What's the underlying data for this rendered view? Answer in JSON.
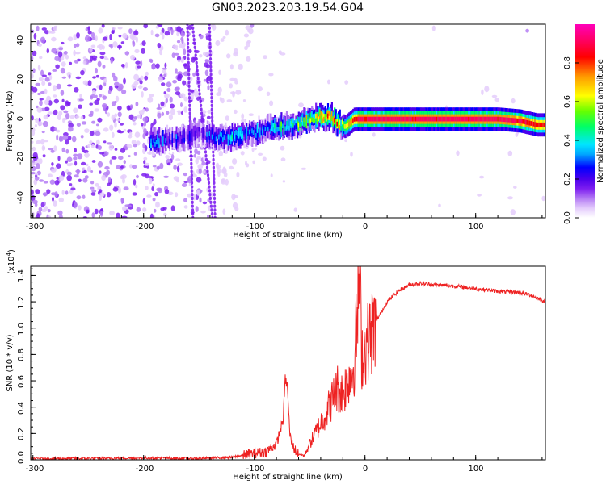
{
  "title": "GN03.2023.203.19.54.G04",
  "top_panel": {
    "xlabel": "Height of straight line (km)",
    "ylabel": "Frequency (Hz)",
    "xticks": [
      "-300",
      "-200",
      "-100",
      "0",
      "100"
    ],
    "yticks": [
      "40",
      "20",
      "0",
      "-20",
      "-40"
    ],
    "colorbar": {
      "label": "Normalized spectral amplitude",
      "ticks": [
        "0.0",
        "0.2",
        "0.4",
        "0.6",
        "0.8"
      ]
    }
  },
  "bottom_panel": {
    "xlabel": "Height of straight line (km)",
    "ylabel": "SNR (10 * v/v)",
    "scale_label": "(x10",
    "scale_exp": "4",
    "scale_close": ")",
    "yticks": [
      "1.4",
      "1.2",
      "1.0",
      "0.8",
      "0.6",
      "0.4",
      "0.2",
      "0.0"
    ],
    "xticks": [
      "-300",
      "-200",
      "-100",
      "0",
      "100"
    ]
  },
  "chart_data": [
    {
      "type": "heatmap",
      "title": "GN03.2023.203.19.54.G04",
      "xlabel": "Height of straight line (km)",
      "ylabel": "Frequency (Hz)",
      "xlim": [
        -302,
        163
      ],
      "ylim": [
        -51,
        49
      ],
      "colorbar_label": "Normalized spectral amplitude",
      "colorbar_range": [
        0,
        1
      ],
      "colormap": [
        "#ffffff",
        "#e4ccfc",
        "#b47cf4",
        "#7d1ef0",
        "#4a00ec",
        "#0000ff",
        "#00aaff",
        "#00e6ff",
        "#00ff66",
        "#66ff00",
        "#ffff00",
        "#ff9900",
        "#ff0000",
        "#ff0066",
        "#ff00bb"
      ],
      "ridge": {
        "x": [
          -190,
          -170,
          -150,
          -130,
          -110,
          -95,
          -80,
          -65,
          -50,
          -40,
          -30,
          -22,
          -18,
          -10,
          0,
          20,
          40,
          60,
          80,
          100,
          120,
          140,
          155,
          163
        ],
        "y": [
          -12,
          -10,
          -7,
          -10,
          -8,
          -6,
          -4,
          -3,
          0,
          1,
          1,
          -3,
          -4,
          0,
          0,
          0,
          0,
          0,
          0,
          0,
          0,
          -1,
          -3,
          -3
        ],
        "amp": [
          0.38,
          0.3,
          0.22,
          0.42,
          0.45,
          0.42,
          0.5,
          0.55,
          0.72,
          0.75,
          0.8,
          0.7,
          0.68,
          0.86,
          0.92,
          0.92,
          0.92,
          0.92,
          0.92,
          0.92,
          0.92,
          0.9,
          0.86,
          0.84
        ]
      },
      "vertical_streaks_x": [
        -158,
        -147,
        -138
      ]
    },
    {
      "type": "line",
      "xlabel": "Height of straight line (km)",
      "ylabel": "SNR (10 * v/v)",
      "xlim": [
        -302,
        163
      ],
      "ylim": [
        0,
        1.47
      ],
      "y_multiplier": "x10^4",
      "color": "#ee2222",
      "series": [
        {
          "x": [
            -302,
            -250,
            -200,
            -150,
            -120,
            -100,
            -90,
            -80,
            -74,
            -72,
            -70,
            -68,
            -66,
            -62,
            -58,
            -55,
            -50,
            -45,
            -40,
            -35,
            -30,
            -25,
            -20,
            -15,
            -10,
            -6,
            -5,
            -3,
            0,
            5,
            10,
            20,
            30,
            40,
            50,
            60,
            80,
            100,
            120,
            140,
            150,
            163
          ],
          "y": [
            0.01,
            0.01,
            0.015,
            0.01,
            0.02,
            0.05,
            0.06,
            0.12,
            0.3,
            0.62,
            0.55,
            0.2,
            0.12,
            0.06,
            0.04,
            0.03,
            0.12,
            0.2,
            0.28,
            0.36,
            0.45,
            0.55,
            0.5,
            0.62,
            0.7,
            1.2,
            1.46,
            0.8,
            0.85,
            0.95,
            1.05,
            1.2,
            1.28,
            1.33,
            1.34,
            1.33,
            1.32,
            1.3,
            1.28,
            1.27,
            1.25,
            1.2
          ]
        }
      ]
    }
  ]
}
